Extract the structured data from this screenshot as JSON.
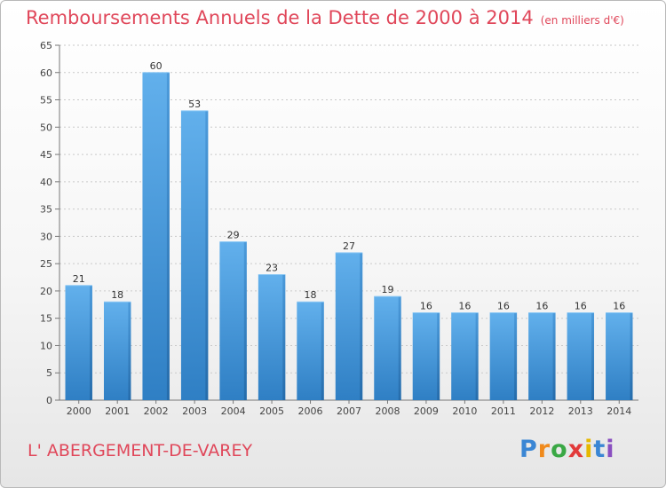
{
  "chart_data": {
    "type": "bar",
    "title": "Remboursements Annuels de la Dette de 2000 à 2014",
    "unit": "(en milliers d'€)",
    "categories": [
      "2000",
      "2001",
      "2002",
      "2003",
      "2004",
      "2005",
      "2006",
      "2007",
      "2008",
      "2009",
      "2010",
      "2011",
      "2012",
      "2013",
      "2014"
    ],
    "values": [
      21,
      18,
      60,
      53,
      29,
      23,
      18,
      27,
      19,
      16,
      16,
      16,
      16,
      16,
      16
    ],
    "ylim": [
      0,
      65
    ],
    "yticks": [
      0,
      5,
      10,
      15,
      20,
      25,
      30,
      35,
      40,
      45,
      50,
      55,
      60,
      65
    ],
    "grid": true,
    "xlabel": "",
    "ylabel": "",
    "bar_color": "#4f9ee0"
  },
  "location": "L' ABERGEMENT-DE-VAREY",
  "logo": {
    "letters": [
      "P",
      "r",
      "o",
      "x",
      "i",
      "t",
      "i"
    ],
    "colors": [
      "#3a86d4",
      "#f08a1c",
      "#3aa845",
      "#e23a3a",
      "#e6b800",
      "#3a86d4",
      "#8a4fc0"
    ]
  }
}
